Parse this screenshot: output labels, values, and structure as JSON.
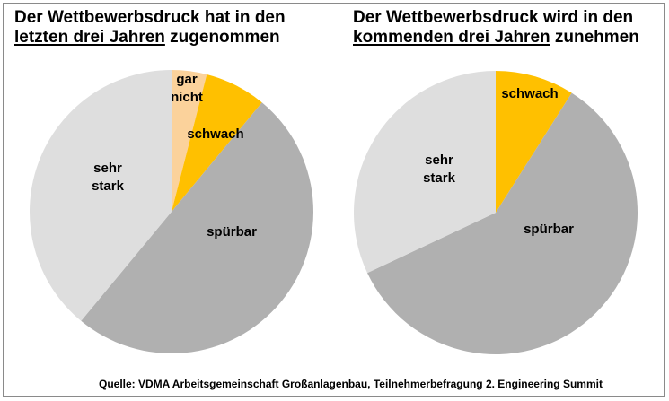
{
  "titles": {
    "left": {
      "line1": "Der Wettbewerbsdruck hat in den",
      "underlined": "letzten drei Jahren",
      "rest": " zugenommen"
    },
    "right": {
      "line1": "Der Wettbewerbsdruck wird in den",
      "underlined": "kommenden drei Jahren",
      "rest": " zunehmen"
    }
  },
  "source": "Quelle: VDMA Arbeitsgemeinschaft Großanlagenbau, Teilnehmerbefragung 2. Engineering Summit",
  "colors": {
    "gar_nicht": "#fbd29b",
    "schwach": "#ffc000",
    "spuerbar": "#b0b0b0",
    "sehr_stark": "#dedede"
  },
  "chart_data": [
    {
      "type": "pie",
      "title": "Der Wettbewerbsdruck hat in den letzten drei Jahren zugenommen",
      "slices": [
        {
          "label": "gar nicht",
          "value": 4,
          "color": "#fbd29b"
        },
        {
          "label": "schwach",
          "value": 7,
          "color": "#ffc000"
        },
        {
          "label": "spürbar",
          "value": 50,
          "color": "#b0b0b0"
        },
        {
          "label": "sehr stark",
          "value": 39,
          "color": "#dedede"
        }
      ]
    },
    {
      "type": "pie",
      "title": "Der Wettbewerbsdruck wird in den kommenden drei Jahren zunehmen",
      "slices": [
        {
          "label": "schwach",
          "value": 9,
          "color": "#ffc000"
        },
        {
          "label": "spürbar",
          "value": 59,
          "color": "#b0b0b0"
        },
        {
          "label": "sehr stark",
          "value": 32,
          "color": "#dedede"
        }
      ]
    }
  ]
}
